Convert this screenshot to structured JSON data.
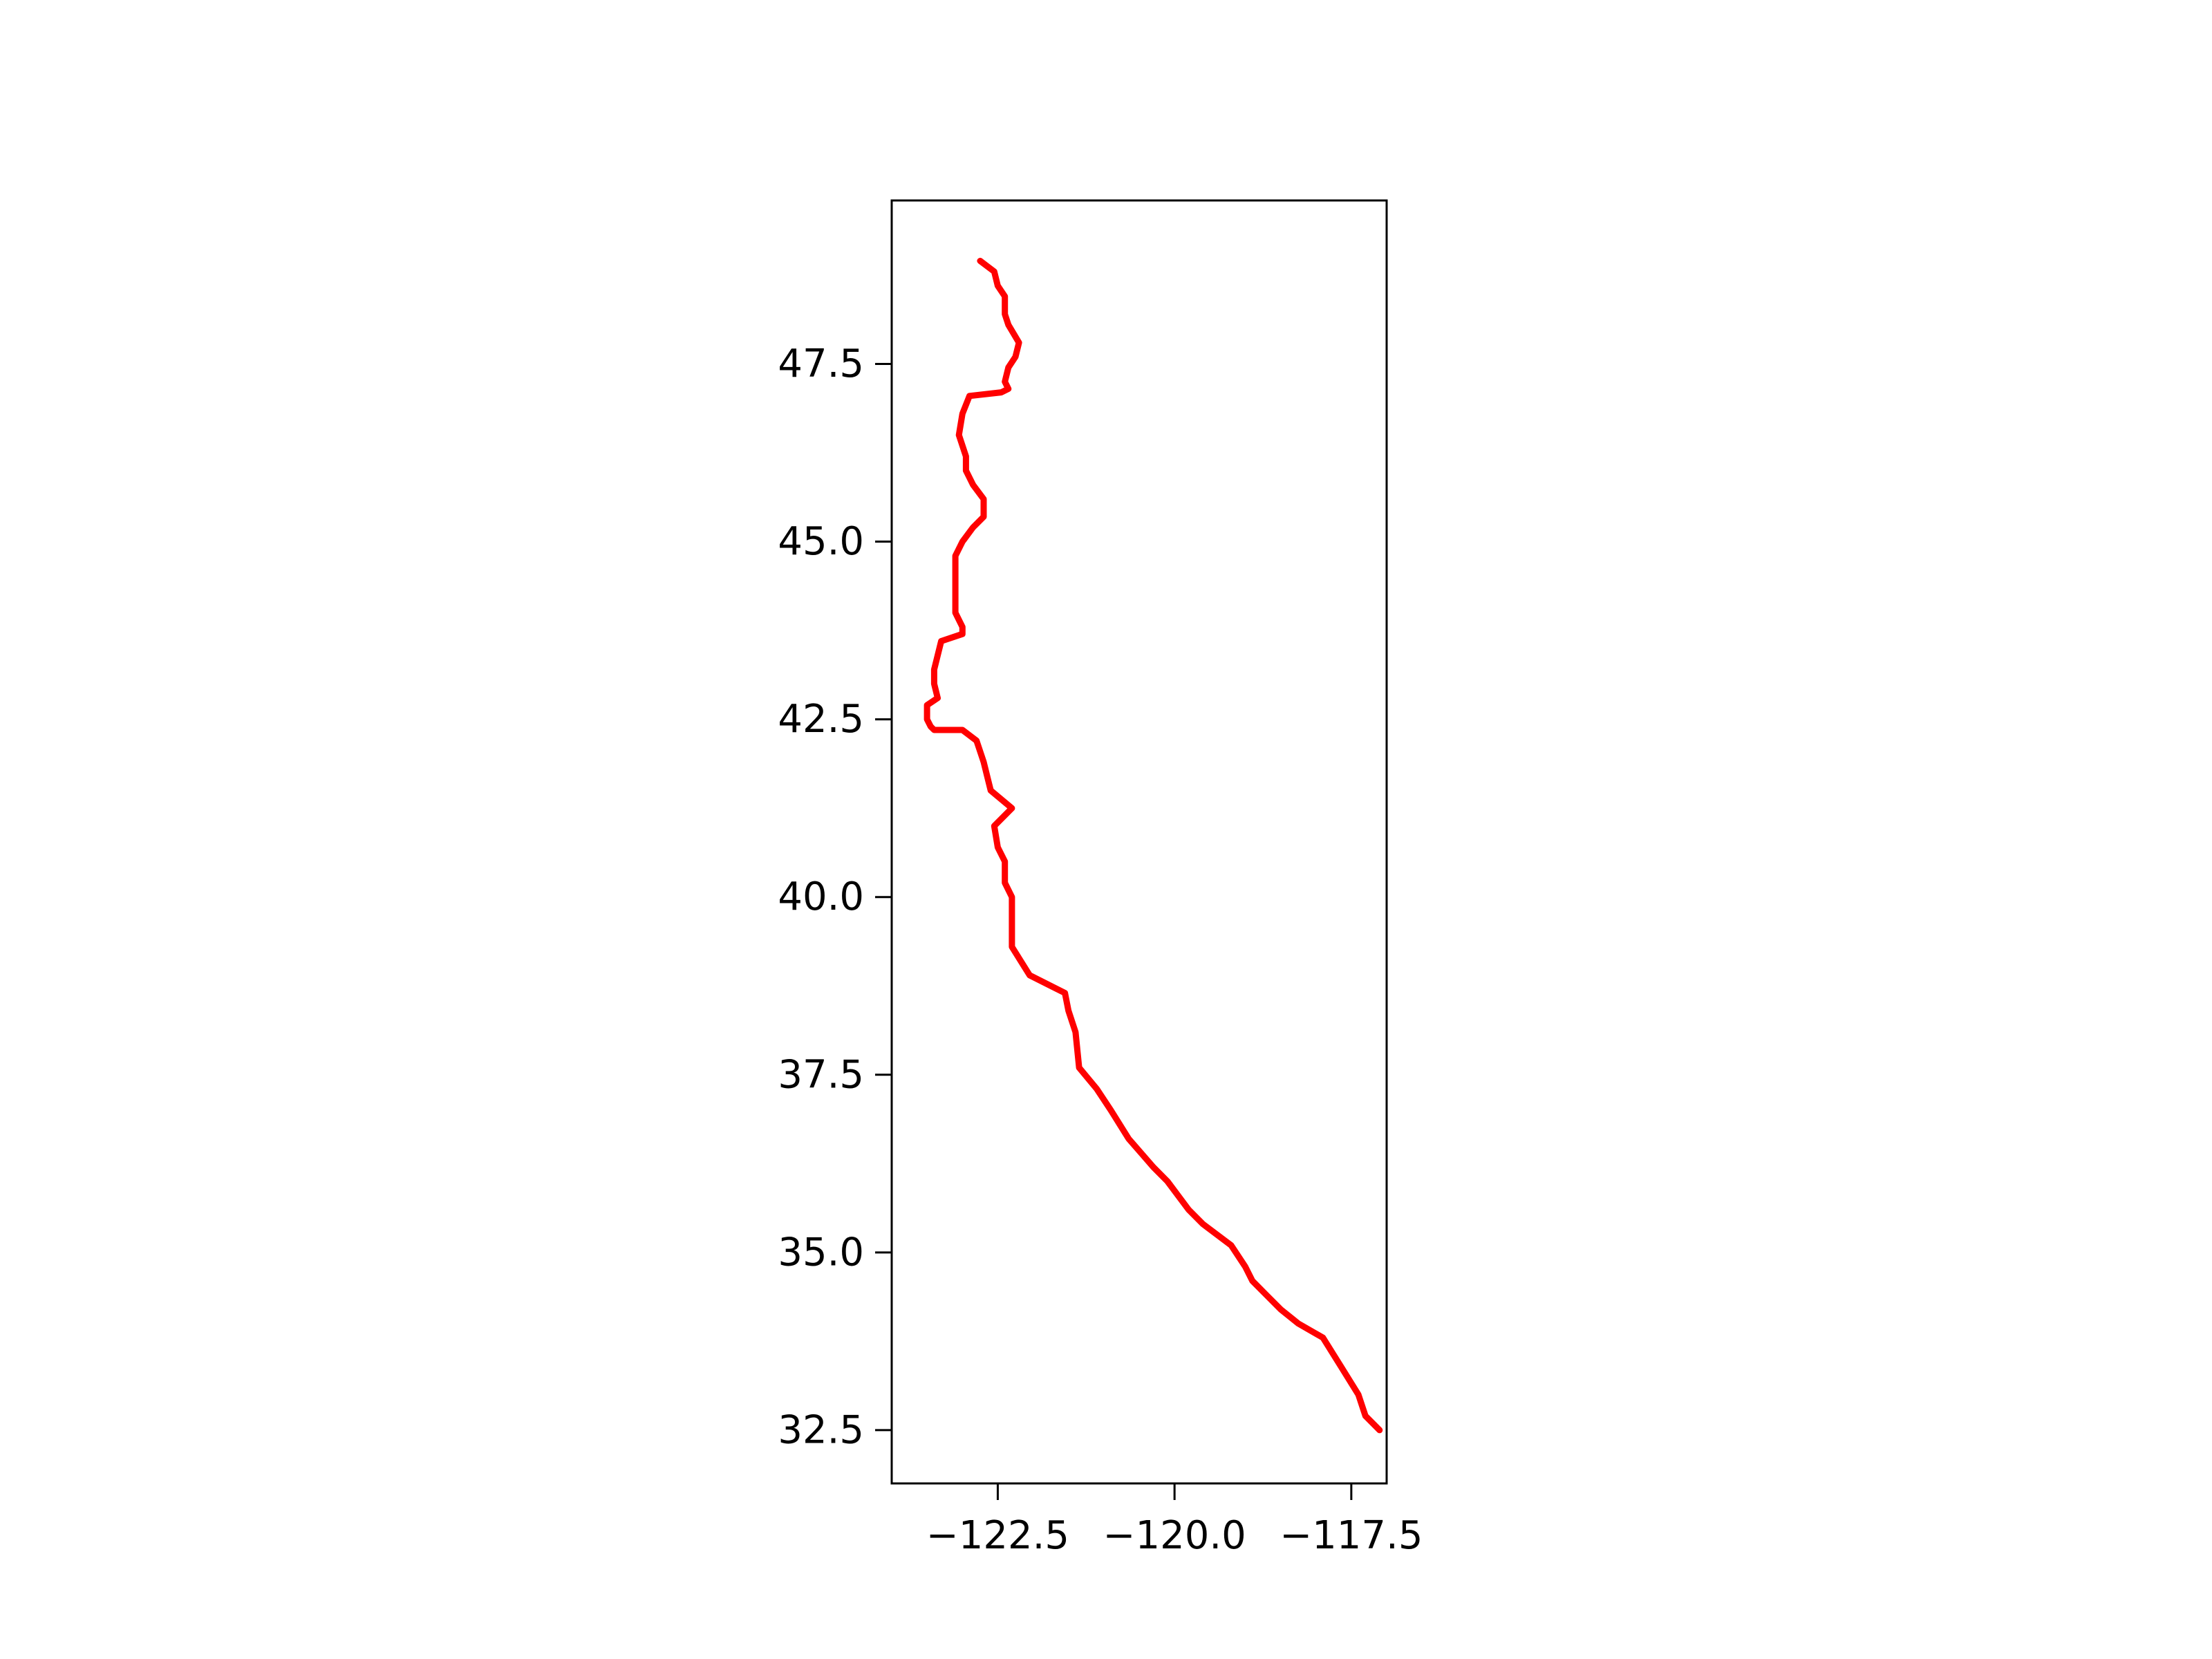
{
  "chart_data": {
    "type": "line",
    "title": "",
    "xlabel": "",
    "ylabel": "",
    "xlim": [
      -124.0,
      -117.0
    ],
    "ylim": [
      31.75,
      49.8
    ],
    "grid": false,
    "x_ticks": [
      {
        "value": -122.5,
        "label": "−122.5"
      },
      {
        "value": -120.0,
        "label": "−120.0"
      },
      {
        "value": -117.5,
        "label": "−117.5"
      }
    ],
    "y_ticks": [
      {
        "value": 32.5,
        "label": "32.5"
      },
      {
        "value": 35.0,
        "label": "35.0"
      },
      {
        "value": 37.5,
        "label": "37.5"
      },
      {
        "value": 40.0,
        "label": "40.0"
      },
      {
        "value": 42.5,
        "label": "42.5"
      },
      {
        "value": 45.0,
        "label": "45.0"
      },
      {
        "value": 47.5,
        "label": "47.5"
      }
    ],
    "series": [
      {
        "color": "#ff0000",
        "x": [
          -122.75,
          -122.55,
          -122.5,
          -122.4,
          -122.4,
          -122.35,
          -122.2,
          -122.25,
          -122.35,
          -122.4,
          -122.35,
          -122.45,
          -122.9,
          -123.0,
          -123.05,
          -122.95,
          -122.95,
          -122.85,
          -122.7,
          -122.7,
          -122.85,
          -123.0,
          -123.1,
          -123.1,
          -123.0,
          -123.0,
          -123.3,
          -123.35,
          -123.4,
          -123.4,
          -123.35,
          -123.5,
          -123.5,
          -123.45,
          -123.4,
          -123.0,
          -122.8,
          -122.7,
          -122.65,
          -122.6,
          -122.3,
          -122.55,
          -122.5,
          -122.4,
          -122.4,
          -122.3,
          -122.3,
          -122.05,
          -121.55,
          -121.5,
          -121.4,
          -121.35,
          -121.1,
          -120.9,
          -120.65,
          -120.3,
          -120.1,
          -119.8,
          -119.6,
          -119.2,
          -119.0,
          -118.9,
          -118.7,
          -118.5,
          -118.25,
          -117.9,
          -117.65,
          -117.4,
          -117.3,
          -117.1
        ],
        "y": [
          48.95,
          48.8,
          48.6,
          48.45,
          48.2,
          48.05,
          47.8,
          47.6,
          47.45,
          47.25,
          47.15,
          47.1,
          47.05,
          46.8,
          46.5,
          46.2,
          46.0,
          45.8,
          45.6,
          45.35,
          45.2,
          45.0,
          44.8,
          44.0,
          43.8,
          43.7,
          43.6,
          43.4,
          43.2,
          43.0,
          42.8,
          42.7,
          42.5,
          42.4,
          42.35,
          42.35,
          42.2,
          41.9,
          41.7,
          41.5,
          41.25,
          41.0,
          40.7,
          40.5,
          40.2,
          40.0,
          39.3,
          38.9,
          38.65,
          38.4,
          38.1,
          37.6,
          37.3,
          37.0,
          36.6,
          36.2,
          36.0,
          35.6,
          35.4,
          35.1,
          34.8,
          34.6,
          34.4,
          34.2,
          34.0,
          33.8,
          33.4,
          33.0,
          32.7,
          32.5
        ]
      }
    ]
  }
}
